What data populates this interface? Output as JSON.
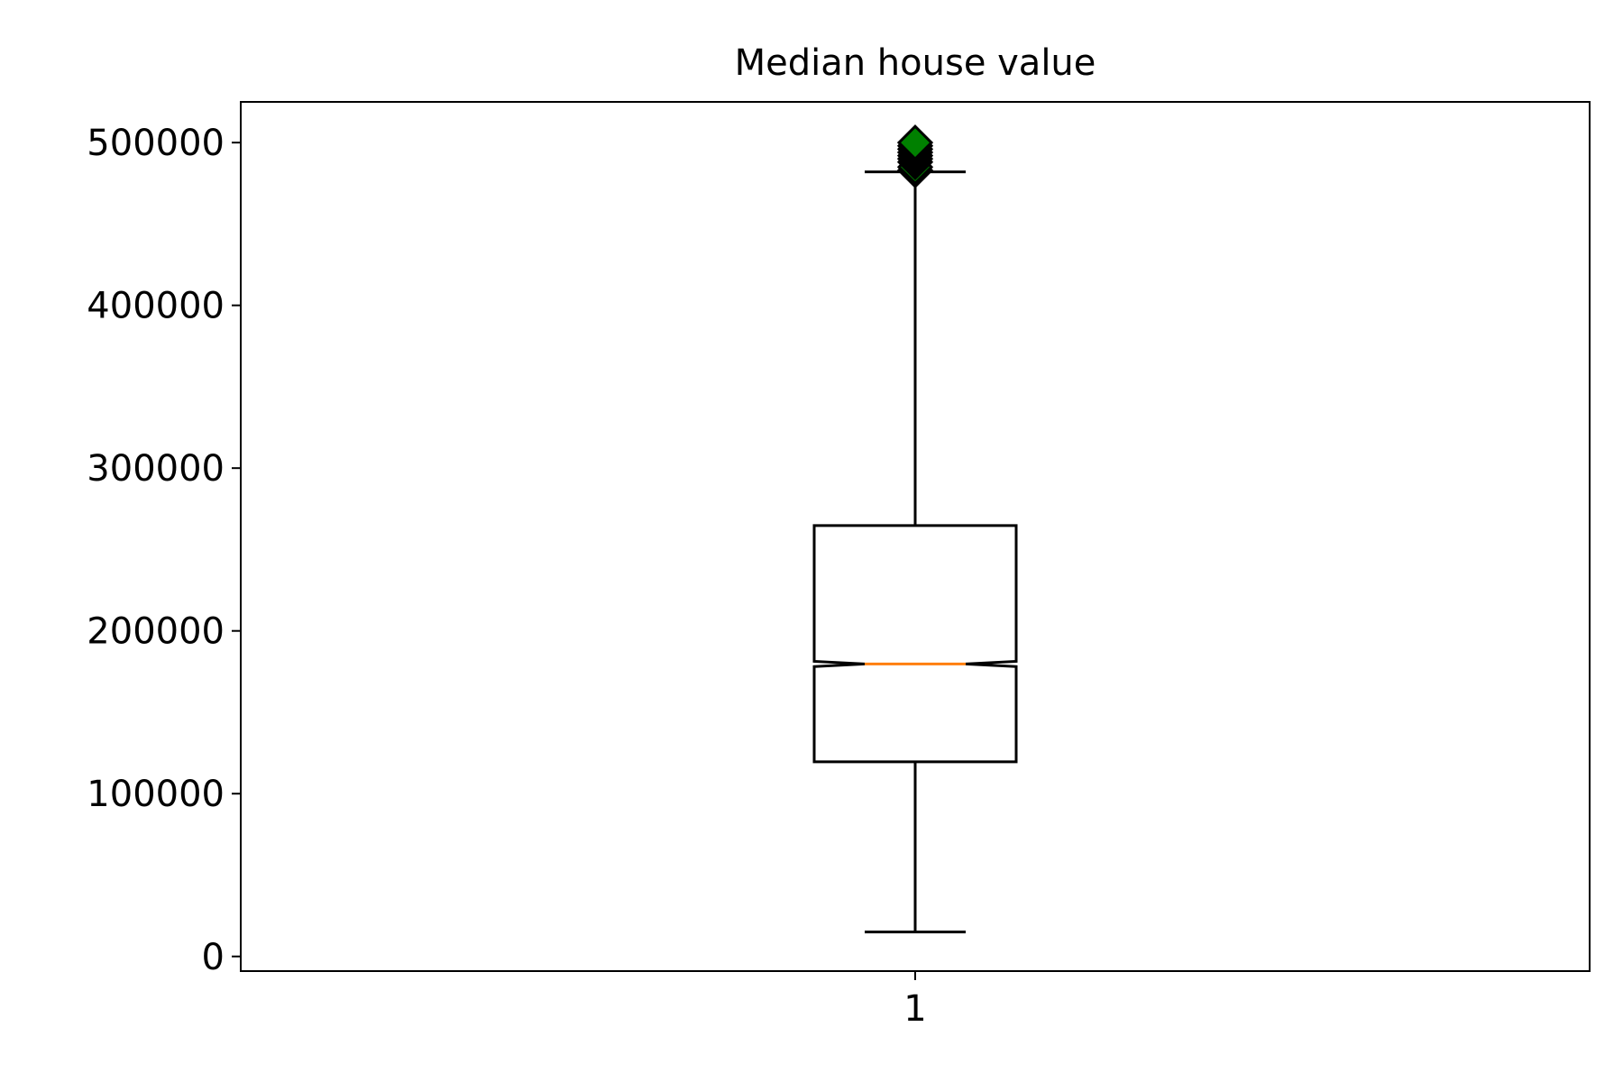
{
  "chart_data": {
    "type": "boxplot",
    "title": "Median house value",
    "xlabel": "",
    "ylabel": "",
    "categories": [
      "1"
    ],
    "ylim": [
      -9000,
      525000
    ],
    "yticks": [
      0,
      100000,
      200000,
      300000,
      400000,
      500000
    ],
    "ytick_labels": [
      "0",
      "100000",
      "200000",
      "300000",
      "400000",
      "500000"
    ],
    "notched": true,
    "boxes": [
      {
        "label": "1",
        "whislo": 15000,
        "q1": 119600,
        "med": 179700,
        "q3": 264700,
        "whishi": 482000,
        "notch_lo": 178100,
        "notch_hi": 181300,
        "fliers": [
          483000,
          485000,
          488000,
          490000,
          492000,
          494000,
          496000,
          498000,
          500001
        ]
      }
    ],
    "grid": false,
    "colors": {
      "box_edge": "#000000",
      "median": "#ff7f0e",
      "flier_fill": "#008000",
      "flier_edge": "#000000"
    }
  }
}
